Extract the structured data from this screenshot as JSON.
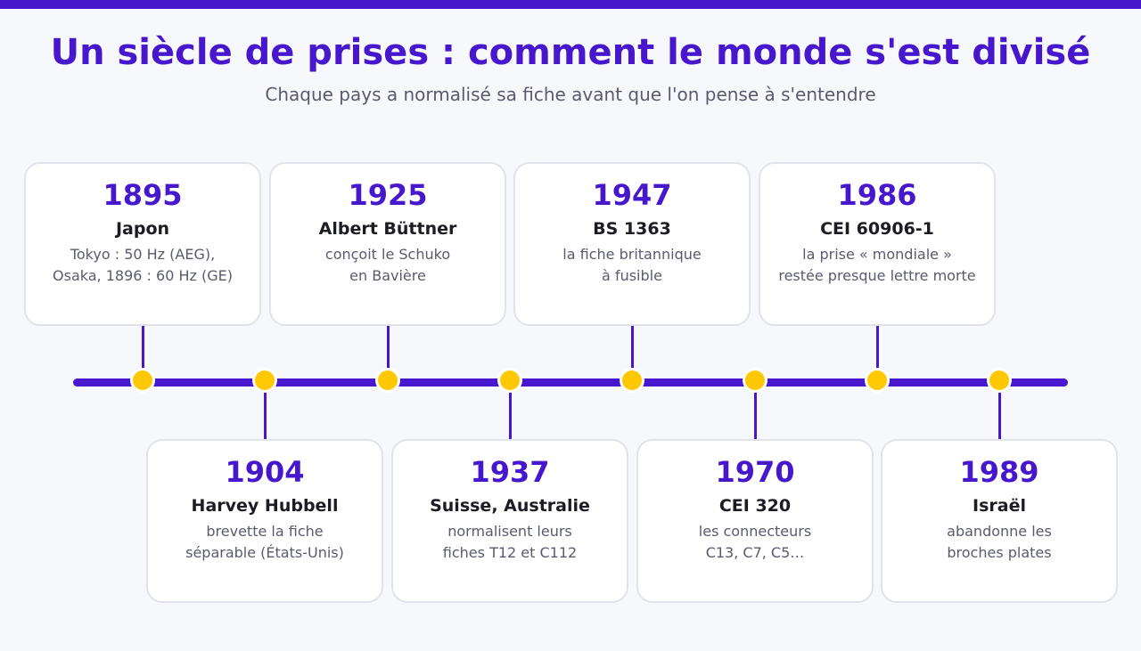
{
  "header": {
    "title": "Un siècle de prises : comment le monde s'est divisé",
    "subtitle": "Chaque pays a normalisé sa fiche avant que l'on pense à s'entendre"
  },
  "colors": {
    "accent": "#4617cc",
    "milestone": "#ffc800",
    "text": "#1c1c24",
    "muted": "#5a5a6e"
  },
  "events": [
    {
      "year": "1895",
      "name": "Japon",
      "desc1": "Tokyo : 50 Hz (AEG),",
      "desc2": "Osaka, 1896 : 60 Hz (GE)"
    },
    {
      "year": "1904",
      "name": "Harvey Hubbell",
      "desc1": "brevette la fiche",
      "desc2": "séparable (États-Unis)"
    },
    {
      "year": "1925",
      "name": "Albert Büttner",
      "desc1": "conçoit le Schuko",
      "desc2": "en Bavière"
    },
    {
      "year": "1937",
      "name": "Suisse, Australie",
      "desc1": "normalisent leurs",
      "desc2": "fiches T12 et C112"
    },
    {
      "year": "1947",
      "name": "BS 1363",
      "desc1": "la fiche britannique",
      "desc2": "à fusible"
    },
    {
      "year": "1970",
      "name": "CEI 320",
      "desc1": "les connecteurs",
      "desc2": "C13, C7, C5…"
    },
    {
      "year": "1986",
      "name": "CEI 60906-1",
      "desc1": "la prise « mondiale »",
      "desc2": "restée presque lettre morte"
    },
    {
      "year": "1989",
      "name": "Israël",
      "desc1": "abandonne les",
      "desc2": "broches plates"
    }
  ]
}
